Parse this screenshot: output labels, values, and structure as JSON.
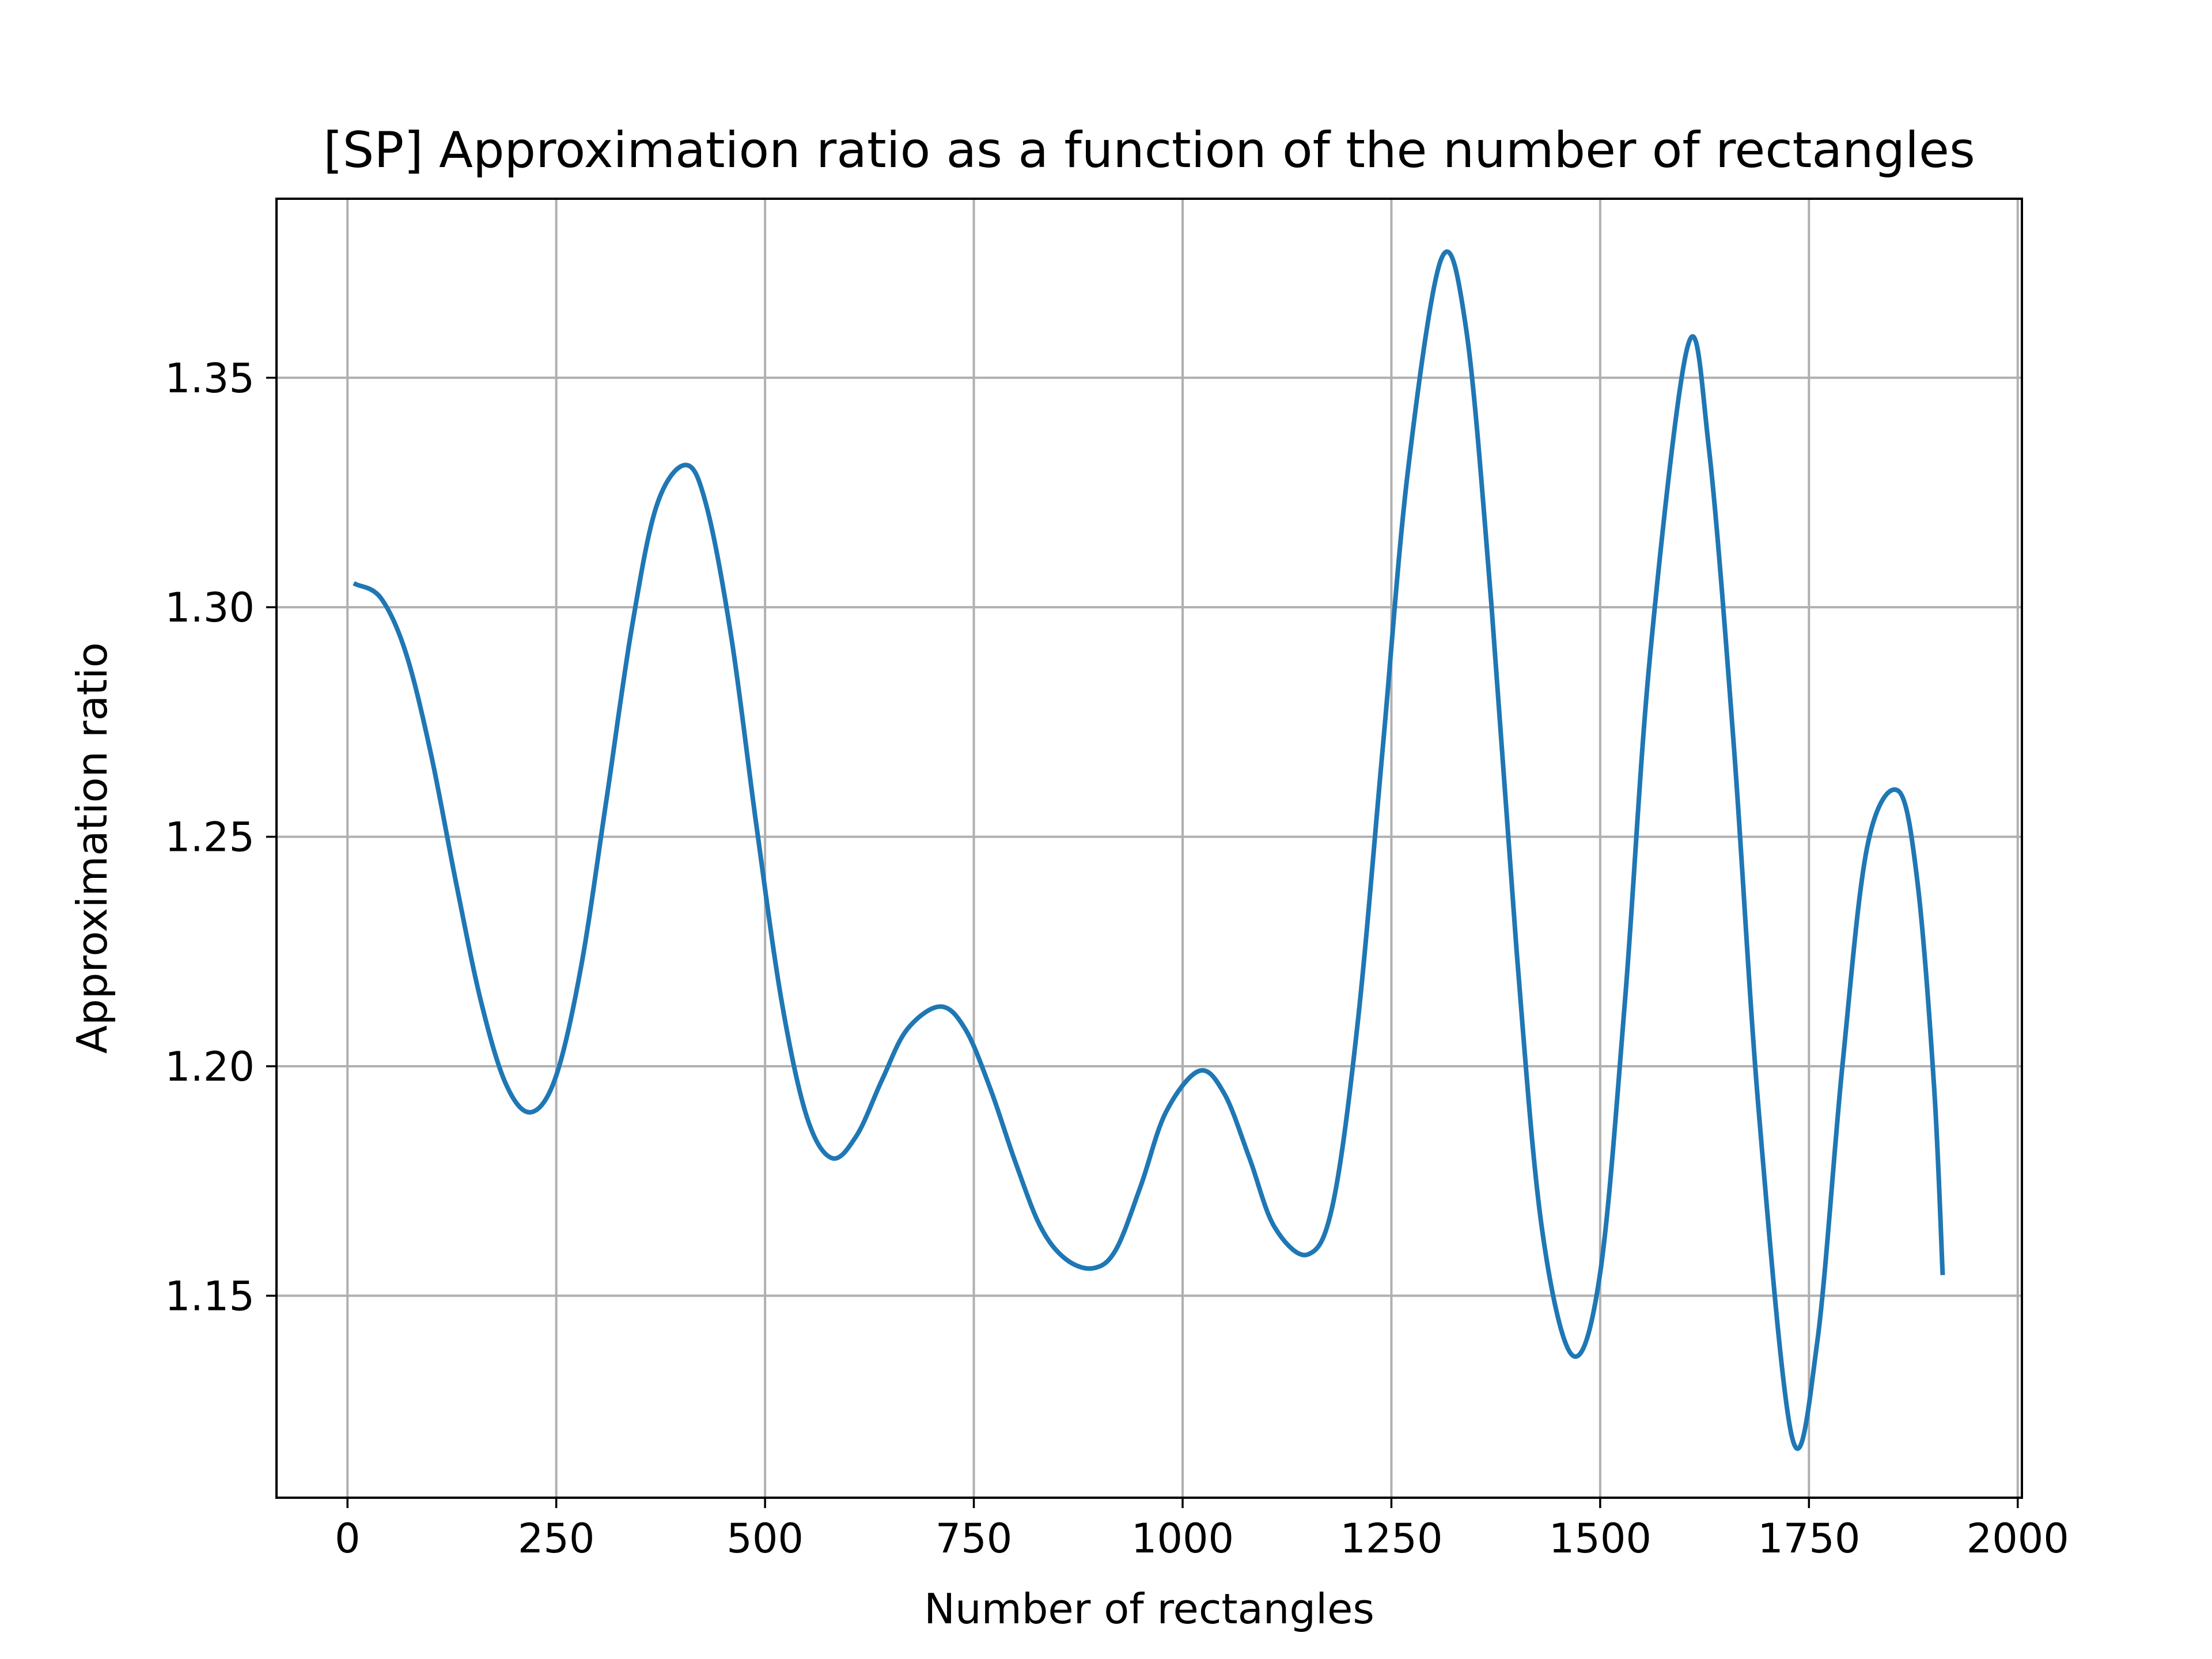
{
  "chart_data": {
    "type": "line",
    "title": "[SP] Approximation ratio as a function of the number of rectangles",
    "xlabel": "Number of rectangles",
    "ylabel": "Approximation ratio",
    "xlim": [
      -85,
      2005
    ],
    "ylim": [
      1.106,
      1.389
    ],
    "x_ticks": [
      0,
      250,
      500,
      750,
      1000,
      1250,
      1500,
      1750,
      2000
    ],
    "x_tick_labels": [
      "0",
      "250",
      "500",
      "750",
      "1000",
      "1250",
      "1500",
      "1750",
      "2000"
    ],
    "y_ticks": [
      1.15,
      1.2,
      1.25,
      1.3,
      1.35
    ],
    "y_tick_labels": [
      "1.15",
      "1.20",
      "1.25",
      "1.30",
      "1.35"
    ],
    "grid": true,
    "legend": "none",
    "series": [
      {
        "color": "#1f77b4",
        "points": [
          [
            10,
            1.305
          ],
          [
            40,
            1.302
          ],
          [
            70,
            1.29
          ],
          [
            100,
            1.268
          ],
          [
            130,
            1.24
          ],
          [
            160,
            1.214
          ],
          [
            190,
            1.196
          ],
          [
            220,
            1.19
          ],
          [
            250,
            1.198
          ],
          [
            280,
            1.222
          ],
          [
            310,
            1.258
          ],
          [
            340,
            1.295
          ],
          [
            370,
            1.322
          ],
          [
            405,
            1.331
          ],
          [
            430,
            1.322
          ],
          [
            460,
            1.293
          ],
          [
            490,
            1.252
          ],
          [
            520,
            1.214
          ],
          [
            550,
            1.189
          ],
          [
            580,
            1.18
          ],
          [
            610,
            1.185
          ],
          [
            640,
            1.197
          ],
          [
            670,
            1.208
          ],
          [
            710,
            1.213
          ],
          [
            740,
            1.208
          ],
          [
            770,
            1.195
          ],
          [
            800,
            1.179
          ],
          [
            830,
            1.165
          ],
          [
            860,
            1.158
          ],
          [
            893,
            1.156
          ],
          [
            920,
            1.16
          ],
          [
            950,
            1.174
          ],
          [
            980,
            1.19
          ],
          [
            1020,
            1.199
          ],
          [
            1050,
            1.194
          ],
          [
            1080,
            1.18
          ],
          [
            1110,
            1.165
          ],
          [
            1150,
            1.159
          ],
          [
            1180,
            1.17
          ],
          [
            1210,
            1.21
          ],
          [
            1240,
            1.27
          ],
          [
            1270,
            1.33
          ],
          [
            1310,
            1.376
          ],
          [
            1340,
            1.36
          ],
          [
            1370,
            1.3
          ],
          [
            1400,
            1.225
          ],
          [
            1430,
            1.165
          ],
          [
            1467,
            1.137
          ],
          [
            1500,
            1.155
          ],
          [
            1530,
            1.215
          ],
          [
            1560,
            1.29
          ],
          [
            1605,
            1.357
          ],
          [
            1630,
            1.335
          ],
          [
            1660,
            1.27
          ],
          [
            1690,
            1.19
          ],
          [
            1730,
            1.119
          ],
          [
            1760,
            1.14
          ],
          [
            1790,
            1.2
          ],
          [
            1820,
            1.248
          ],
          [
            1857,
            1.26
          ],
          [
            1880,
            1.24
          ],
          [
            1900,
            1.195
          ],
          [
            1910,
            1.155
          ]
        ]
      }
    ]
  }
}
